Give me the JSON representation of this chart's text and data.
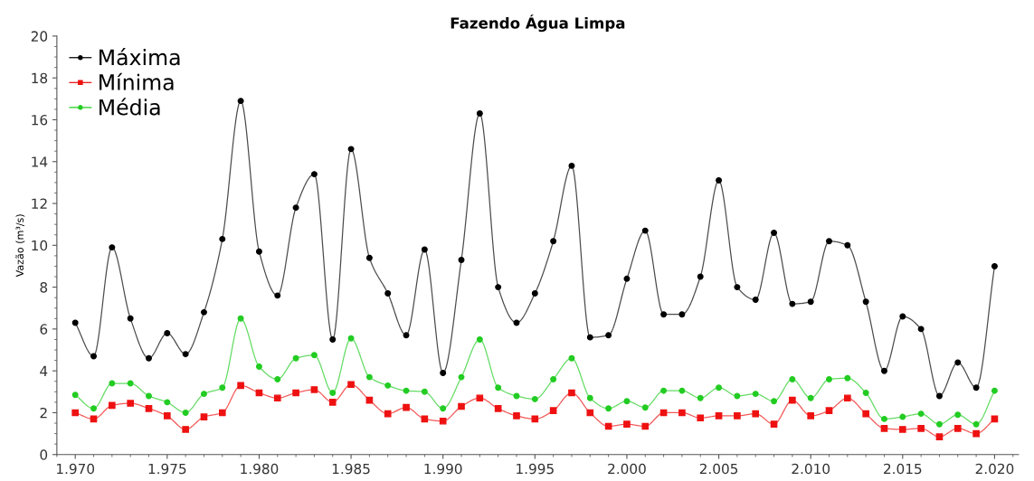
{
  "chart_data": {
    "type": "line",
    "title": "Fazendo Água Limpa",
    "ylabel": "Vazão (m³/s)",
    "x": [
      1970,
      1971,
      1972,
      1973,
      1974,
      1975,
      1976,
      1977,
      1978,
      1979,
      1980,
      1981,
      1982,
      1983,
      1984,
      1985,
      1986,
      1987,
      1988,
      1989,
      1990,
      1991,
      1992,
      1993,
      1994,
      1995,
      1996,
      1997,
      1998,
      1999,
      2000,
      2001,
      2002,
      2003,
      2004,
      2005,
      2006,
      2007,
      2008,
      2009,
      2010,
      2011,
      2012,
      2013,
      2014,
      2015,
      2016,
      2017,
      2018,
      2019,
      2020
    ],
    "series": [
      {
        "name": "Máxima",
        "color": "#000000",
        "marker": "circle",
        "values": [
          6.3,
          4.7,
          9.9,
          6.5,
          4.6,
          5.8,
          4.8,
          6.8,
          10.3,
          16.9,
          9.7,
          7.6,
          11.8,
          13.4,
          5.5,
          14.6,
          9.4,
          7.7,
          5.7,
          9.8,
          3.9,
          9.3,
          16.3,
          8.0,
          6.3,
          7.7,
          10.2,
          13.8,
          5.6,
          5.7,
          8.4,
          10.7,
          6.7,
          6.7,
          8.5,
          13.1,
          8.0,
          7.4,
          10.6,
          7.2,
          7.3,
          10.2,
          10.0,
          7.3,
          4.0,
          6.6,
          6.0,
          2.8,
          4.4,
          3.2,
          9.0
        ]
      },
      {
        "name": "Mínima",
        "color": "#ee1111",
        "marker": "square",
        "values": [
          2.0,
          1.7,
          2.35,
          2.45,
          2.2,
          1.85,
          1.2,
          1.8,
          2.0,
          3.3,
          2.95,
          2.7,
          2.95,
          3.1,
          2.5,
          3.35,
          2.6,
          1.95,
          2.25,
          1.7,
          1.6,
          2.3,
          2.7,
          2.2,
          1.85,
          1.7,
          2.1,
          2.95,
          2.0,
          1.35,
          1.45,
          1.35,
          2.0,
          2.0,
          1.75,
          1.85,
          1.85,
          1.95,
          1.45,
          2.6,
          1.85,
          2.1,
          2.7,
          1.95,
          1.25,
          1.2,
          1.25,
          0.85,
          1.25,
          1.0,
          1.7
        ]
      },
      {
        "name": "Média",
        "color": "#22cc22",
        "marker": "circle",
        "values": [
          2.85,
          2.2,
          3.4,
          3.4,
          2.8,
          2.5,
          2.0,
          2.9,
          3.2,
          6.5,
          4.2,
          3.6,
          4.6,
          4.75,
          2.95,
          5.55,
          3.7,
          3.3,
          3.05,
          3.0,
          2.2,
          3.7,
          5.5,
          3.2,
          2.8,
          2.65,
          3.6,
          4.6,
          2.7,
          2.2,
          2.55,
          2.25,
          3.05,
          3.05,
          2.7,
          3.2,
          2.8,
          2.9,
          2.55,
          3.6,
          2.7,
          3.6,
          3.65,
          2.95,
          1.7,
          1.8,
          1.95,
          1.45,
          1.9,
          1.45,
          3.05
        ]
      }
    ],
    "xlim": [
      1969,
      2021.3
    ],
    "ylim": [
      0,
      20
    ],
    "xticks": [
      {
        "value": 1970,
        "label": "1.970"
      },
      {
        "value": 1975,
        "label": "1.975"
      },
      {
        "value": 1980,
        "label": "1.980"
      },
      {
        "value": 1985,
        "label": "1.985"
      },
      {
        "value": 1990,
        "label": "1.990"
      },
      {
        "value": 1995,
        "label": "1.995"
      },
      {
        "value": 2000,
        "label": "2.000"
      },
      {
        "value": 2005,
        "label": "2.005"
      },
      {
        "value": 2010,
        "label": "2.010"
      },
      {
        "value": 2015,
        "label": "2.015"
      },
      {
        "value": 2020,
        "label": "2.020"
      }
    ],
    "yticks": [
      0,
      2,
      4,
      6,
      8,
      10,
      12,
      14,
      16,
      18,
      20
    ],
    "grid": false,
    "legend": "top left",
    "line_style": "solid"
  }
}
